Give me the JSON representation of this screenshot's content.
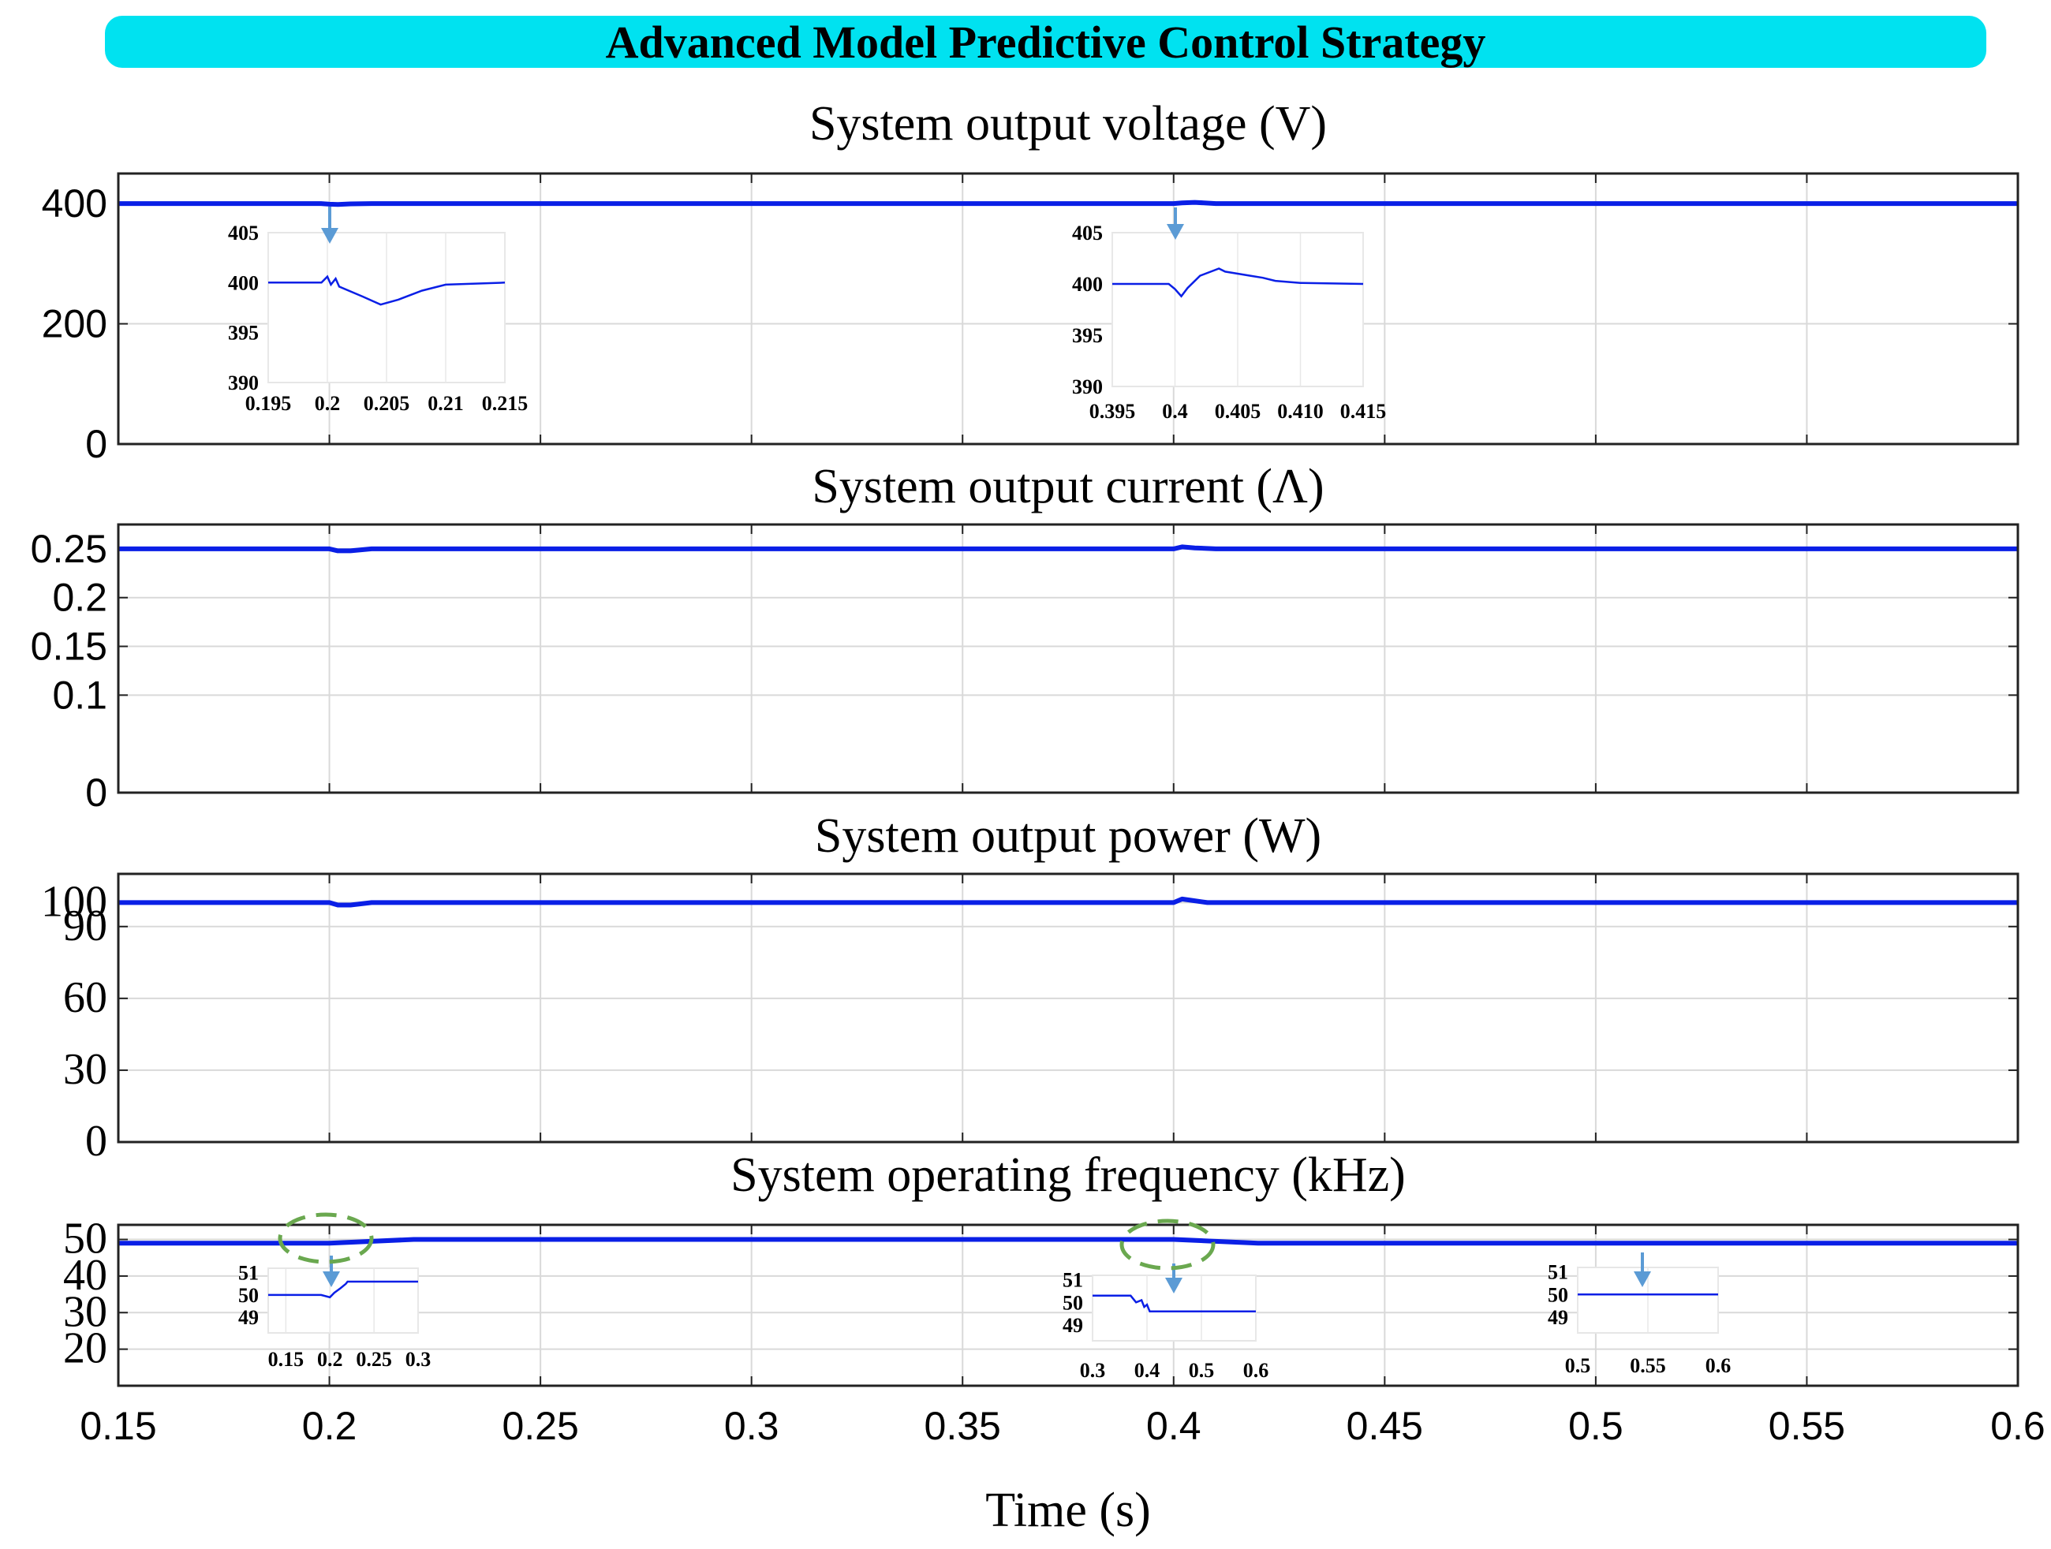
{
  "colors": {
    "title_bar": "#00e2f0",
    "series": "#0a1fe6",
    "grid": "#d9d9d9",
    "arrow": "#5b9bd5",
    "ellipse": "#6aa84f"
  },
  "header": {
    "title": "Advanced Model Predictive Control Strategy"
  },
  "chart_data": [
    {
      "type": "line",
      "title": "System output voltage (V)",
      "xlabel": "",
      "ylabel": "",
      "xlim": [
        0.15,
        0.6
      ],
      "ylim": [
        0,
        450
      ],
      "yticks": [
        "0",
        "200",
        "400"
      ],
      "grid": true,
      "series": [
        {
          "x": [
            0.15,
            0.198,
            0.2,
            0.202,
            0.205,
            0.21,
            0.4,
            0.402,
            0.405,
            0.41,
            0.6
          ],
          "y": [
            400,
            400,
            399,
            398.5,
            399.5,
            400,
            400,
            401,
            402,
            400,
            400
          ]
        }
      ],
      "insets": [
        {
          "xticks": [
            "0.195",
            "0.2",
            "0.205",
            "0.21",
            "0.215"
          ],
          "xlim": [
            0.195,
            0.215
          ],
          "yticks": [
            "390",
            "395",
            "400",
            "405"
          ],
          "ylim": [
            390,
            405
          ],
          "x": [
            0.195,
            0.1995,
            0.2,
            0.2003,
            0.2007,
            0.201,
            0.203,
            0.2045,
            0.206,
            0.208,
            0.21,
            0.215
          ],
          "y": [
            400,
            400,
            400.6,
            399.8,
            400.4,
            399.6,
            398.6,
            397.8,
            398.3,
            399.2,
            399.8,
            400
          ]
        },
        {
          "xticks": [
            "0.395",
            "0.4",
            "0.405",
            "0.410",
            "0.415"
          ],
          "xlim": [
            0.395,
            0.415
          ],
          "yticks": [
            "390",
            "395",
            "400",
            "405"
          ],
          "ylim": [
            390,
            405
          ],
          "x": [
            0.395,
            0.3995,
            0.4,
            0.4005,
            0.401,
            0.402,
            0.4035,
            0.404,
            0.405,
            0.406,
            0.407,
            0.408,
            0.41,
            0.415
          ],
          "y": [
            400,
            400,
            399.5,
            398.8,
            399.6,
            400.8,
            401.5,
            401.2,
            401,
            400.8,
            400.6,
            400.3,
            400.1,
            400
          ]
        }
      ]
    },
    {
      "type": "line",
      "title": "System output current (Λ)",
      "xlabel": "",
      "ylabel": "",
      "xlim": [
        0.15,
        0.6
      ],
      "ylim": [
        0,
        0.275
      ],
      "yticks": [
        "0",
        "0.1",
        "0.15",
        "0.2",
        "0.25"
      ],
      "grid": true,
      "series": [
        {
          "x": [
            0.15,
            0.2,
            0.202,
            0.205,
            0.21,
            0.4,
            0.402,
            0.405,
            0.41,
            0.6
          ],
          "y": [
            0.25,
            0.25,
            0.248,
            0.248,
            0.25,
            0.25,
            0.252,
            0.251,
            0.25,
            0.25
          ]
        }
      ]
    },
    {
      "type": "line",
      "title": "System output power (W)",
      "xlabel": "",
      "ylabel": "",
      "xlim": [
        0.15,
        0.6
      ],
      "ylim": [
        0,
        112
      ],
      "yticks": [
        "0",
        "30",
        "60",
        "90",
        "100"
      ],
      "grid": true,
      "series": [
        {
          "x": [
            0.15,
            0.2,
            0.202,
            0.205,
            0.21,
            0.4,
            0.402,
            0.404,
            0.408,
            0.6
          ],
          "y": [
            100,
            100,
            99,
            99,
            100,
            100,
            101.5,
            101,
            100,
            100
          ]
        }
      ]
    },
    {
      "type": "line",
      "title": "System operating frequency (kHz)",
      "xlabel": "Time (s)",
      "ylabel": "",
      "xlim": [
        0.15,
        0.6
      ],
      "ylim": [
        10,
        54
      ],
      "yticks": [
        "20",
        "30",
        "40",
        "50"
      ],
      "xticks": [
        "0.15",
        "0.2",
        "0.25",
        "0.3",
        "0.35",
        "0.4",
        "0.45",
        "0.5",
        "0.55",
        "0.6"
      ],
      "grid": true,
      "series": [
        {
          "x": [
            0.15,
            0.2,
            0.22,
            0.25,
            0.38,
            0.4,
            0.42,
            0.6
          ],
          "y": [
            49,
            49,
            50,
            50,
            50,
            50,
            49,
            49
          ]
        }
      ],
      "insets": [
        {
          "xticks": [
            "0.15",
            "0.2",
            "0.25",
            "0.3"
          ],
          "xlim": [
            0.13,
            0.3
          ],
          "yticks": [
            "49",
            "50",
            "51"
          ],
          "ylim": [
            48.3,
            51.2
          ],
          "x": [
            0.13,
            0.19,
            0.2,
            0.205,
            0.212,
            0.218,
            0.22,
            0.3
          ],
          "y": [
            50,
            50,
            49.9,
            50.1,
            50.3,
            50.5,
            50.6,
            50.6
          ]
        },
        {
          "xticks": [
            "0.3",
            "0.4",
            "0.5",
            "0.6"
          ],
          "xlim": [
            0.3,
            0.6
          ],
          "yticks": [
            "49",
            "50",
            "51"
          ],
          "ylim": [
            48.3,
            51.2
          ],
          "x": [
            0.3,
            0.37,
            0.38,
            0.39,
            0.395,
            0.4,
            0.405,
            0.41,
            0.6
          ],
          "y": [
            50.3,
            50.3,
            50.0,
            50.1,
            49.8,
            49.9,
            49.6,
            49.6,
            49.6
          ]
        },
        {
          "xticks": [
            "0.5",
            "0.55",
            "0.6"
          ],
          "xlim": [
            0.5,
            0.6
          ],
          "yticks": [
            "49",
            "50",
            "51"
          ],
          "ylim": [
            48.3,
            51.2
          ],
          "x": [
            0.5,
            0.6
          ],
          "y": [
            50,
            50
          ]
        }
      ]
    }
  ]
}
